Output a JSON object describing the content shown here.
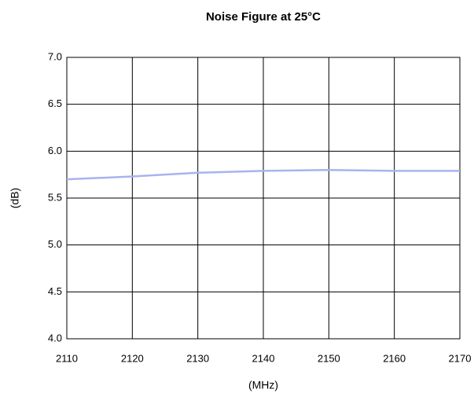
{
  "chart_data": {
    "type": "line",
    "title": "Noise Figure at 25°C",
    "x_label": "(MHz)",
    "y_label": "(dB)",
    "series": [
      {
        "name": "Noise Figure",
        "color": "#a9b3ee",
        "x": [
          2110,
          2120,
          2130,
          2140,
          2150,
          2160,
          2170
        ],
        "values": [
          5.7,
          5.73,
          5.77,
          5.79,
          5.8,
          5.79,
          5.79
        ]
      }
    ],
    "xlim": [
      2110,
      2170
    ],
    "xticks": [
      2110,
      2120,
      2130,
      2140,
      2150,
      2160,
      2170
    ],
    "ylim": [
      4.0,
      7.0
    ],
    "yticks": [
      {
        "value": 4.0,
        "label": "4.0"
      },
      {
        "value": 4.5,
        "label": "4.5"
      },
      {
        "value": 5.0,
        "label": "5.0"
      },
      {
        "value": 5.5,
        "label": "5.5"
      },
      {
        "value": 6.0,
        "label": "6.0"
      },
      {
        "value": 6.5,
        "label": "6.5"
      },
      {
        "value": 7.0,
        "label": "7.0"
      }
    ],
    "grid": true
  }
}
